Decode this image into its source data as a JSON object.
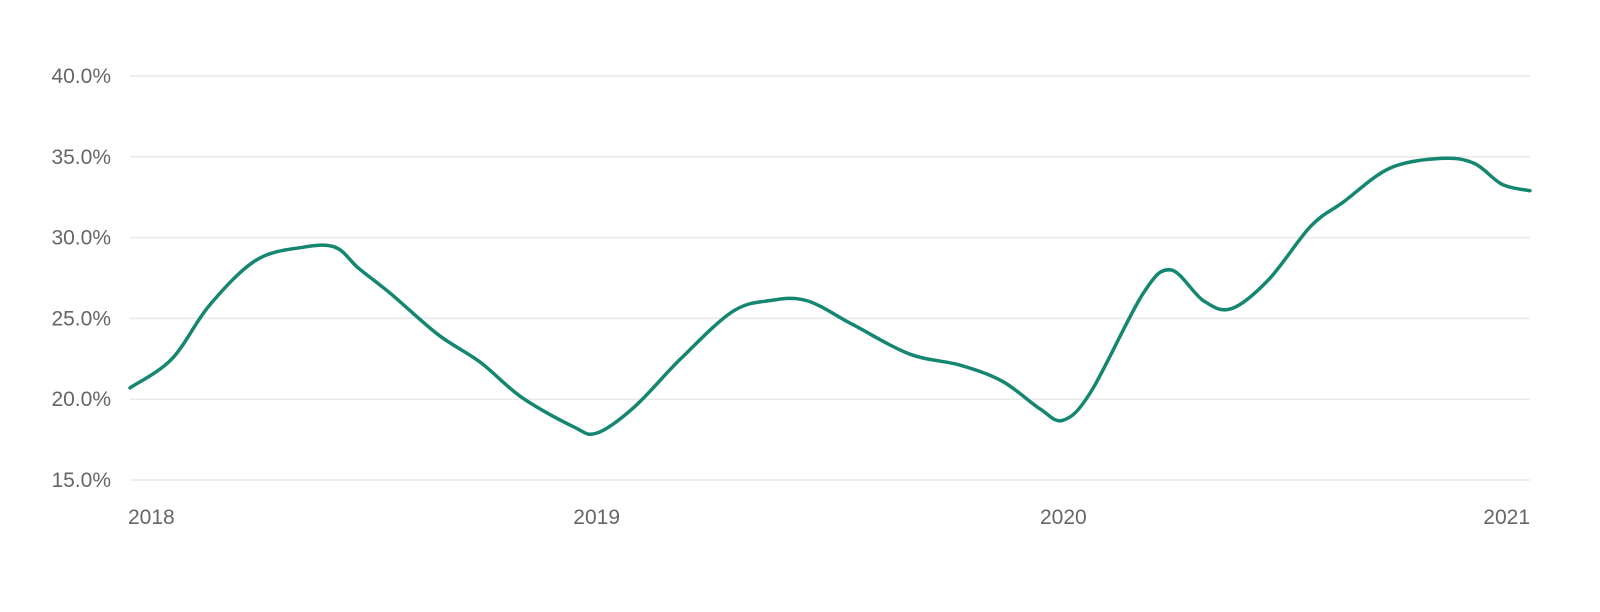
{
  "chart_data": {
    "type": "line",
    "title": "",
    "xlabel": "",
    "ylabel": "",
    "xlim": [
      2018.0,
      2021.0
    ],
    "ylim": [
      15.0,
      40.0
    ],
    "grid": true,
    "y_ticks": [
      15,
      20,
      25,
      30,
      35,
      40
    ],
    "y_tick_labels": [
      "15.0%",
      "20.0%",
      "25.0%",
      "30.0%",
      "35.0%",
      "40.0%"
    ],
    "x_ticks": [
      2018,
      2019,
      2020,
      2021
    ],
    "x_tick_labels": [
      "2018",
      "2019",
      "2020",
      "2021"
    ],
    "series": [
      {
        "color": "#15866f",
        "points": [
          [
            2018.0,
            20.7
          ],
          [
            2018.09,
            22.5
          ],
          [
            2018.17,
            25.8
          ],
          [
            2018.27,
            28.6
          ],
          [
            2018.37,
            29.4
          ],
          [
            2018.44,
            29.4
          ],
          [
            2018.49,
            28.1
          ],
          [
            2018.56,
            26.5
          ],
          [
            2018.66,
            24.0
          ],
          [
            2018.75,
            22.3
          ],
          [
            2018.84,
            20.1
          ],
          [
            2018.95,
            18.3
          ],
          [
            2019.0,
            17.9
          ],
          [
            2019.08,
            19.5
          ],
          [
            2019.18,
            22.5
          ],
          [
            2019.29,
            25.4
          ],
          [
            2019.37,
            26.1
          ],
          [
            2019.45,
            26.1
          ],
          [
            2019.55,
            24.6
          ],
          [
            2019.67,
            22.8
          ],
          [
            2019.78,
            22.1
          ],
          [
            2019.87,
            21.1
          ],
          [
            2019.95,
            19.4
          ],
          [
            2020.0,
            18.7
          ],
          [
            2020.06,
            20.5
          ],
          [
            2020.17,
            26.5
          ],
          [
            2020.23,
            28.0
          ],
          [
            2020.3,
            26.1
          ],
          [
            2020.36,
            25.6
          ],
          [
            2020.44,
            27.4
          ],
          [
            2020.53,
            30.7
          ],
          [
            2020.6,
            32.2
          ],
          [
            2020.7,
            34.3
          ],
          [
            2020.81,
            34.9
          ],
          [
            2020.88,
            34.6
          ],
          [
            2020.94,
            33.3
          ],
          [
            2021.0,
            32.9
          ]
        ]
      }
    ]
  }
}
